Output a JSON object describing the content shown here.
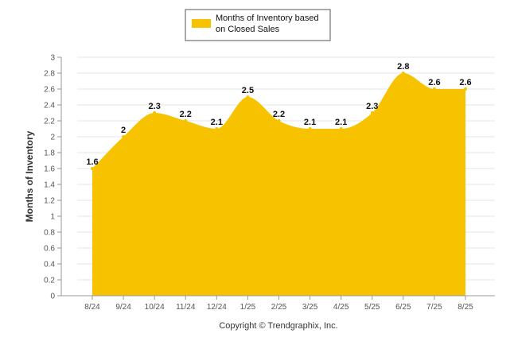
{
  "chart_data": {
    "type": "area",
    "categories": [
      "8/24",
      "9/24",
      "10/24",
      "11/24",
      "12/24",
      "1/25",
      "2/25",
      "3/25",
      "4/25",
      "5/25",
      "6/25",
      "7/25",
      "8/25"
    ],
    "series": [
      {
        "name": "Months of Inventory based on Closed Sales",
        "values": [
          1.6,
          2,
          2.3,
          2.2,
          2.1,
          2.5,
          2.2,
          2.1,
          2.1,
          2.3,
          2.8,
          2.6,
          2.6
        ],
        "color": "#F7C300"
      }
    ],
    "ylabel": "Months of Inventory",
    "xlabel": "",
    "ylim": [
      0,
      3
    ],
    "yticks": [
      0,
      0.2,
      0.4,
      0.6,
      0.8,
      1,
      1.2,
      1.4,
      1.6,
      1.8,
      2,
      2.2,
      2.4,
      2.6,
      2.8,
      3
    ],
    "grid": true,
    "legend_position": "top-center"
  },
  "legend": {
    "line1": "Months of Inventory based",
    "line2": "on Closed Sales"
  },
  "footer": {
    "copyright": "Copyright © Trendgraphix, Inc."
  }
}
